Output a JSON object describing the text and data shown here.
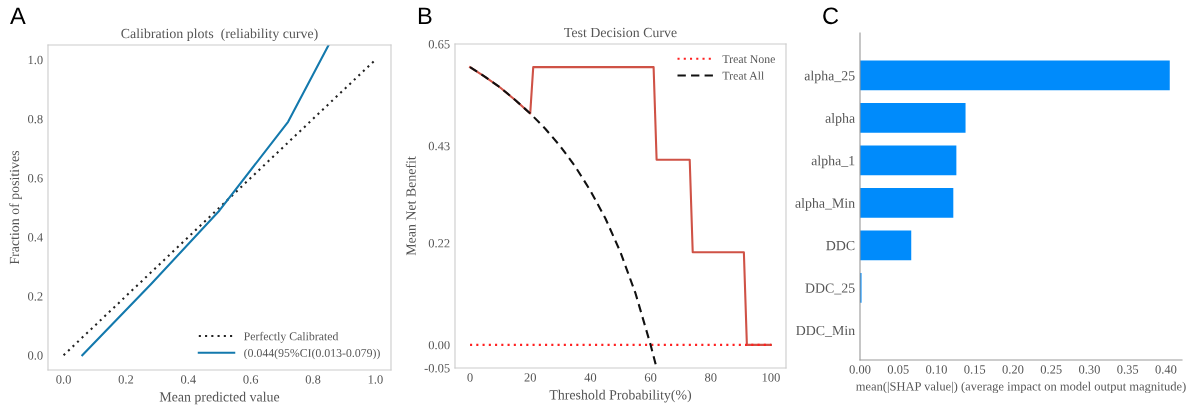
{
  "chart_data": [
    {
      "type": "line",
      "title": "Calibration plots  (reliability curve)",
      "xlabel": "Mean predicted value",
      "ylabel": "Fraction of positives",
      "annotations": [
        "A"
      ],
      "xlim": [
        -0.05,
        1.05
      ],
      "ylim": [
        -0.05,
        1.05
      ],
      "xticks": [
        {
          "value": 0,
          "label": "0.0"
        },
        {
          "value": 0.2,
          "label": "0.2"
        },
        {
          "value": 0.4,
          "label": "0.4"
        },
        {
          "value": 0.6,
          "label": "0.6"
        },
        {
          "value": 0.8,
          "label": "0.8"
        },
        {
          "value": 1,
          "label": "1.0"
        }
      ],
      "yticks": [
        {
          "value": 0,
          "label": "0.0"
        },
        {
          "value": 0.2,
          "label": "0.2"
        },
        {
          "value": 0.4,
          "label": "0.4"
        },
        {
          "value": 0.6,
          "label": "0.6"
        },
        {
          "value": 0.8,
          "label": "0.8"
        },
        {
          "value": 1,
          "label": "1.0"
        }
      ],
      "grid": false,
      "legend": "bottom right",
      "series": [
        {
          "name": "Perfectly Calibrated",
          "color": "#222222",
          "line_style": "dotted",
          "x": [
            0,
            1
          ],
          "values": [
            0,
            1
          ]
        },
        {
          "name": "(0.044(95%CI(0.013-0.079))",
          "color": "#1379ad",
          "line_style": "solid",
          "x": [
            0.06,
            0.28,
            0.5,
            0.72,
            0.85
          ],
          "values": [
            0,
            0.24,
            0.49,
            0.79,
            1.05
          ]
        }
      ]
    },
    {
      "type": "line",
      "title": "Test Decision Curve",
      "xlabel": "Threshold Probability(%)",
      "ylabel": "Mean Net Benefit",
      "annotations": [
        "B"
      ],
      "xlim": [
        -5,
        105
      ],
      "ylim": [
        -0.05,
        0.65
      ],
      "xticks": [
        0,
        20,
        40,
        60,
        80,
        100
      ],
      "yticks": [
        {
          "value": -0.05,
          "label": "-0.05"
        },
        {
          "value": 0,
          "label": "0.00"
        },
        {
          "value": 0.22,
          "label": "0.22"
        },
        {
          "value": 0.43,
          "label": "0.43"
        },
        {
          "value": 0.65,
          "label": "0.65"
        }
      ],
      "grid": false,
      "legend": "top right",
      "series": [
        {
          "color": "#cf5246",
          "line_style": "solid",
          "x": [
            0,
            5,
            10,
            15,
            20,
            21,
            61,
            62,
            73,
            74,
            91,
            92,
            100
          ],
          "values": [
            0.6,
            0.579,
            0.556,
            0.529,
            0.5,
            0.6,
            0.6,
            0.4,
            0.4,
            0.2,
            0.2,
            0,
            0
          ]
        },
        {
          "name": "Treat None",
          "color": "#ff2020",
          "line_style": "dotted",
          "x": [
            0,
            100
          ],
          "values": [
            0,
            0
          ]
        },
        {
          "name": "Treat All",
          "color": "#111111",
          "line_style": "dashed",
          "x": [
            0,
            5,
            10,
            15,
            20,
            25,
            30,
            35,
            40,
            45,
            50,
            55,
            60,
            62
          ],
          "values": [
            0.6,
            0.579,
            0.556,
            0.529,
            0.5,
            0.467,
            0.429,
            0.385,
            0.333,
            0.273,
            0.2,
            0.111,
            0,
            -0.05
          ]
        }
      ]
    },
    {
      "type": "bar",
      "orientation": "horizontal",
      "xlabel": "mean(|SHAP value|) (average impact on model output magnitude)",
      "annotations": [
        "C"
      ],
      "categories": [
        "alpha_25",
        "alpha",
        "alpha_1",
        "alpha_Min",
        "DDC",
        "DDC_25",
        "DDC_Min"
      ],
      "values": [
        0.405,
        0.138,
        0.126,
        0.122,
        0.067,
        0.002,
        0
      ],
      "color": "#008bfb",
      "xlim": [
        0,
        0.421
      ],
      "xticks": [
        {
          "value": 0,
          "label": "0.00"
        },
        {
          "value": 0.05,
          "label": "0.05"
        },
        {
          "value": 0.1,
          "label": "0.10"
        },
        {
          "value": 0.15,
          "label": "0.15"
        },
        {
          "value": 0.2,
          "label": "0.20"
        },
        {
          "value": 0.25,
          "label": "0.25"
        },
        {
          "value": 0.3,
          "label": "0.30"
        },
        {
          "value": 0.35,
          "label": "0.35"
        },
        {
          "value": 0.4,
          "label": "0.40"
        }
      ],
      "grid": false,
      "legend": false
    }
  ]
}
